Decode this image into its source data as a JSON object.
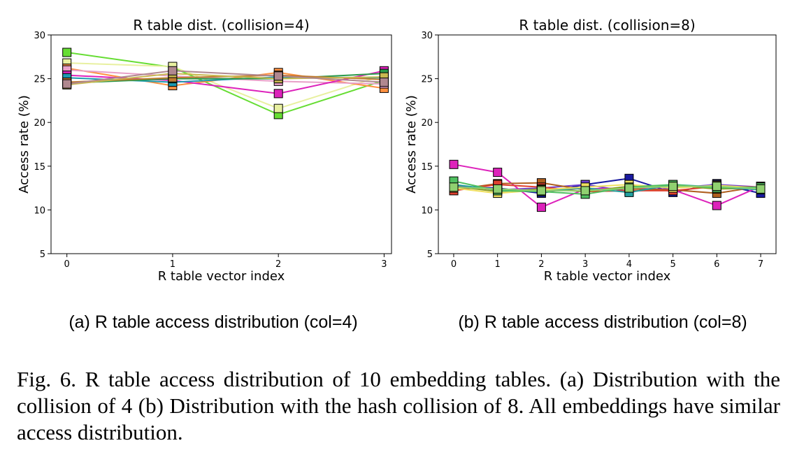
{
  "figure": {
    "caption": "Fig. 6.  R table access distribution of 10 embedding tables. (a) Distribution with the collision of 4 (b) Distribution with the hash collision of 8. All embeddings have similar access distribution."
  },
  "chart_data": [
    {
      "type": "line",
      "title": "R table dist. (collision=4)",
      "subcaption": "(a) R table access distribution (col=4)",
      "xlabel": "R table vector index",
      "ylabel": "Access rate (%)",
      "x": [
        0,
        1,
        2,
        3
      ],
      "xlim": [
        -0.15,
        3.07
      ],
      "ylim": [
        5,
        30
      ],
      "yticks": [
        5,
        10,
        15,
        20,
        25,
        30
      ],
      "xticks": [
        0,
        1,
        2,
        3
      ],
      "grid": false,
      "legend": "none",
      "marker": "square",
      "series": [
        {
          "color": "#66dd33",
          "values": [
            28.0,
            26.3,
            20.9,
            24.8
          ]
        },
        {
          "color": "#e8f0a0",
          "values": [
            26.8,
            26.4,
            21.6,
            25.4
          ]
        },
        {
          "color": "#ff9040",
          "values": [
            26.2,
            24.2,
            25.7,
            23.9
          ]
        },
        {
          "color": "#e8a0c8",
          "values": [
            26.0,
            25.3,
            24.7,
            24.4
          ]
        },
        {
          "color": "#dd22bb",
          "values": [
            25.4,
            24.8,
            23.3,
            25.9
          ]
        },
        {
          "color": "#1d9ab0",
          "values": [
            25.1,
            24.6,
            25.2,
            25.1
          ]
        },
        {
          "color": "#2a9a4a",
          "values": [
            24.5,
            25.0,
            25.0,
            25.6
          ]
        },
        {
          "color": "#c07a30",
          "values": [
            24.6,
            25.1,
            25.4,
            24.9
          ]
        },
        {
          "color": "#c8b850",
          "values": [
            24.3,
            25.6,
            25.0,
            25.2
          ]
        },
        {
          "color": "#b08890",
          "values": [
            24.4,
            25.9,
            25.3,
            24.6
          ]
        }
      ]
    },
    {
      "type": "line",
      "title": "R table dist. (collision=8)",
      "subcaption": "(b) R table access distribution (col=8)",
      "xlabel": "R table vector index",
      "ylabel": "Access rate (%)",
      "x": [
        0,
        1,
        2,
        3,
        4,
        5,
        6,
        7
      ],
      "xlim": [
        -0.35,
        7.35
      ],
      "ylim": [
        5,
        30
      ],
      "yticks": [
        5,
        10,
        15,
        20,
        25,
        30
      ],
      "xticks": [
        0,
        1,
        2,
        3,
        4,
        5,
        6,
        7
      ],
      "grid": false,
      "legend": "none",
      "marker": "square",
      "series": [
        {
          "color": "#1a1aa0",
          "values": [
            12.6,
            12.5,
            11.9,
            12.9,
            13.6,
            12.0,
            13.0,
            11.9
          ]
        },
        {
          "color": "#7040d0",
          "values": [
            12.8,
            12.3,
            12.5,
            12.9,
            12.1,
            12.5,
            12.9,
            12.6
          ]
        },
        {
          "color": "#dd22bb",
          "values": [
            15.2,
            14.3,
            10.3,
            12.4,
            12.5,
            12.3,
            10.5,
            12.7
          ]
        },
        {
          "color": "#b06020",
          "values": [
            12.3,
            13.0,
            13.1,
            12.3,
            12.4,
            12.3,
            11.9,
            12.7
          ]
        },
        {
          "color": "#e04030",
          "values": [
            12.2,
            12.9,
            12.6,
            12.1,
            12.2,
            12.2,
            12.7,
            12.6
          ]
        },
        {
          "color": "#8a9a20",
          "values": [
            12.7,
            12.1,
            12.4,
            12.1,
            12.7,
            12.8,
            12.4,
            12.5
          ]
        },
        {
          "color": "#22a0a0",
          "values": [
            12.9,
            12.3,
            12.2,
            12.5,
            12.0,
            12.9,
            12.6,
            12.3
          ]
        },
        {
          "color": "#f0e060",
          "values": [
            12.5,
            11.9,
            12.3,
            12.6,
            12.9,
            12.5,
            12.8,
            12.5
          ]
        },
        {
          "color": "#50c060",
          "values": [
            13.3,
            12.2,
            12.1,
            11.8,
            12.6,
            12.9,
            12.5,
            12.6
          ]
        },
        {
          "color": "#90d070",
          "values": [
            12.6,
            12.4,
            12.2,
            12.2,
            12.5,
            12.7,
            12.7,
            12.4
          ]
        }
      ]
    }
  ]
}
